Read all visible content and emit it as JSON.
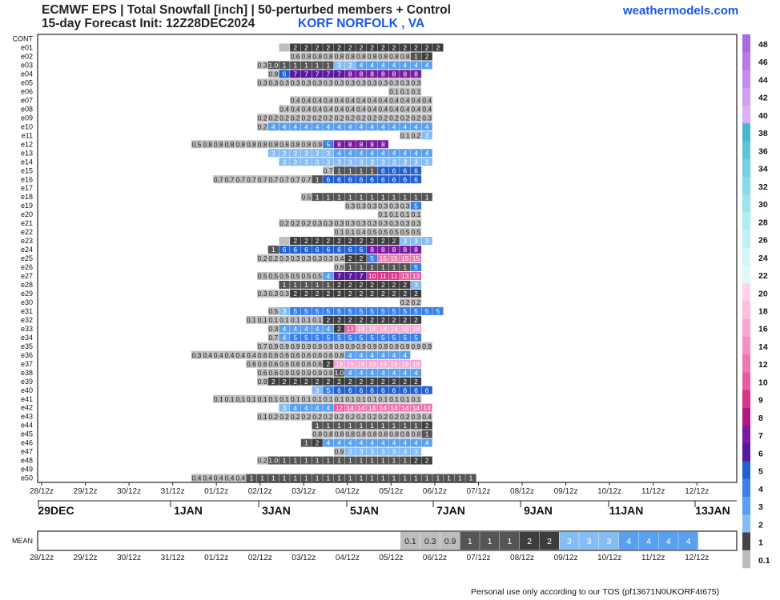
{
  "header": {
    "title": "ECMWF EPS | Total Snowfall [inch] | 50-perturbed members + Control",
    "subtitle": "15-day Forecast Init: 12Z28DEC2024",
    "location": "KORF NORFOLK        , VA",
    "brand": "weathermodels.com"
  },
  "footer": "Personal use only according to our TOS (pf13671N0UKORF4t675)",
  "chart_data": {
    "type": "heatmap",
    "unit": "inch",
    "members": [
      "CONT",
      "e01",
      "e02",
      "e03",
      "e04",
      "e05",
      "e06",
      "e07",
      "e08",
      "e09",
      "e10",
      "e11",
      "e12",
      "e13",
      "e14",
      "e15",
      "e16",
      "e17",
      "e18",
      "e19",
      "e20",
      "e21",
      "e22",
      "e23",
      "e24",
      "e25",
      "e26",
      "e27",
      "e28",
      "e29",
      "e30",
      "e31",
      "e32",
      "e33",
      "e34",
      "e35",
      "e36",
      "e37",
      "e38",
      "e39",
      "e40",
      "e41",
      "e42",
      "e43",
      "e44",
      "e45",
      "e46",
      "e47",
      "e48",
      "e49",
      "e50"
    ],
    "time_ticks": [
      "28/12z",
      "29/12z",
      "30/12z",
      "31/12z",
      "01/12z",
      "02/12z",
      "03/12z",
      "04/12z",
      "05/12z",
      "06/12z",
      "07/12z",
      "08/12z",
      "09/12z",
      "10/12z",
      "11/12z",
      "12/12z"
    ],
    "date_labels": [
      "29DEC",
      "1JAN",
      "3JAN",
      "5JAN",
      "7JAN",
      "9JAN",
      "11JAN",
      "13JAN"
    ],
    "colorbar": [
      "48",
      "46",
      "44",
      "42",
      "40",
      "38",
      "36",
      "34",
      "32",
      "30",
      "28",
      "26",
      "24",
      "22",
      "20",
      "18",
      "16",
      "14",
      "12",
      "10",
      "9",
      "8",
      "7",
      "6",
      "5",
      "4",
      "3",
      "2",
      "1",
      "0.1"
    ],
    "colorbar_colors": [
      "#a76ae0",
      "#b77ae8",
      "#c48cee",
      "#cf9ef2",
      "#d9b2f5",
      "#4ab7cf",
      "#5ec4d8",
      "#72d0e1",
      "#86dbe8",
      "#9be4ee",
      "#aeecf2",
      "#c0f1f5",
      "#d0f6f8",
      "#def9fb",
      "#ffd4ea",
      "#fbbede",
      "#f7a7d1",
      "#f38fc2",
      "#ee76b2",
      "#e65ca0",
      "#d9338a",
      "#b51883",
      "#7a1aa0",
      "#5a189a",
      "#2260d0",
      "#3a80e8",
      "#5aa0f0",
      "#86bcf4",
      "#444444",
      "#bdbdbd"
    ],
    "mean_label": "MEAN",
    "mean": [
      [
        "0.1",
        "0.3",
        "0.9",
        "1",
        "1",
        "1",
        "2",
        "2",
        "3",
        "3",
        "3",
        "4",
        "4",
        "4",
        "4"
      ]
    ],
    "rows": [
      {
        "m": "e01",
        "s": 22,
        "v": [
          "",
          "2",
          "2",
          "2",
          "2",
          "2",
          "2",
          "2",
          "2",
          "2",
          "2",
          "2",
          "2",
          "2",
          "2"
        ]
      },
      {
        "m": "e02",
        "s": 23,
        "v": [
          "0.6",
          "0.8",
          "0.8",
          "0.8",
          "0.8",
          "0.8",
          "0.8",
          "0.8",
          "0.8",
          "0.8",
          "0.8",
          "1",
          "2"
        ]
      },
      {
        "m": "e03",
        "s": 20,
        "v": [
          "0.3",
          "1.0",
          "1",
          "1",
          "1",
          "1",
          "1",
          "3",
          "3",
          "4",
          "4",
          "4",
          "4",
          "4",
          "4",
          "4"
        ]
      },
      {
        "m": "e04",
        "s": 21,
        "v": [
          "0.9",
          "6",
          "7",
          "7",
          "7",
          "7",
          "7",
          "8",
          "8",
          "8",
          "8",
          "8",
          "8",
          "8"
        ]
      },
      {
        "m": "e05",
        "s": 20,
        "v": [
          "0.3",
          "0.3",
          "0.3",
          "0.3",
          "0.3",
          "0.3",
          "0.3",
          "0.3",
          "0.3",
          "0.3",
          "0.3",
          "0.3",
          "0.3",
          "0.3",
          "0.3"
        ]
      },
      {
        "m": "e06",
        "s": 32,
        "v": [
          "0.1",
          "0.1",
          "0.1"
        ]
      },
      {
        "m": "e07",
        "s": 23,
        "v": [
          "0.4",
          "0.4",
          "0.4",
          "0.4",
          "0.4",
          "0.4",
          "0.4",
          "0.4",
          "0.4",
          "0.4",
          "0.4",
          "0.4",
          "0.4"
        ]
      },
      {
        "m": "e08",
        "s": 22,
        "v": [
          "0.4",
          "0.4",
          "0.4",
          "0.4",
          "0.4",
          "0.4",
          "0.4",
          "0.4",
          "0.4",
          "0.4",
          "0.4",
          "0.4",
          "0.4",
          "0.4"
        ]
      },
      {
        "m": "e09",
        "s": 20,
        "v": [
          "0.2",
          "0.2",
          "0.2",
          "0.2",
          "0.2",
          "0.2",
          "0.2",
          "0.2",
          "0.2",
          "0.2",
          "0.2",
          "0.2",
          "0.2",
          "0.2",
          "0.2",
          "0.3"
        ]
      },
      {
        "m": "e10",
        "s": 20,
        "v": [
          "0.2",
          "4",
          "4",
          "4",
          "4",
          "4",
          "4",
          "4",
          "4",
          "4",
          "4",
          "4",
          "4",
          "4",
          "4",
          "4"
        ]
      },
      {
        "m": "e11",
        "s": 33,
        "v": [
          "0.1",
          "0.2",
          "3"
        ]
      },
      {
        "m": "e12",
        "s": 14,
        "v": [
          "0.5",
          "0.8",
          "0.8",
          "0.8",
          "0.8",
          "0.8",
          "0.8",
          "0.8",
          "0.8",
          "0.8",
          "0.8",
          "0.9",
          "5",
          "8",
          "8",
          "8",
          "8",
          "8"
        ]
      },
      {
        "m": "e13",
        "s": 21,
        "v": [
          "3",
          "3",
          "3",
          "3",
          "3",
          "3",
          "4",
          "4",
          "4",
          "4",
          "4",
          "4",
          "4",
          "4",
          "4"
        ]
      },
      {
        "m": "e14",
        "s": 22,
        "v": [
          "3",
          "3",
          "3",
          "3",
          "3",
          "3",
          "3",
          "3",
          "3",
          "3",
          "3",
          "3",
          "3",
          "3"
        ]
      },
      {
        "m": "e15",
        "s": 26,
        "v": [
          "0.7",
          "1",
          "1",
          "1",
          "1",
          "6",
          "6",
          "6",
          "6"
        ]
      },
      {
        "m": "e16",
        "s": 16,
        "v": [
          "0.7",
          "0.7",
          "0.7",
          "0.7",
          "0.7",
          "0.7",
          "0.7",
          "0.7",
          "0.7",
          "1",
          "6",
          "6",
          "6",
          "6",
          "6",
          "6",
          "6",
          "6",
          "6"
        ]
      },
      {
        "m": "e18",
        "s": 24,
        "v": [
          "0.5",
          "1",
          "1",
          "1",
          "1",
          "1",
          "1",
          "1",
          "1",
          "1",
          "1",
          "1"
        ]
      },
      {
        "m": "e19",
        "s": 28,
        "v": [
          "0.3",
          "0.3",
          "0.3",
          "0.3",
          "0.3",
          "0.3",
          "5"
        ]
      },
      {
        "m": "e20",
        "s": 31,
        "v": [
          "0.1",
          "0.1",
          "0.1",
          "0.1"
        ]
      },
      {
        "m": "e21",
        "s": 22,
        "v": [
          "0.2",
          "0.2",
          "0.2",
          "0.3",
          "0.3",
          "0.3",
          "0.3",
          "0.3",
          "0.3",
          "0.3",
          "0.3",
          "0.3",
          "0.3"
        ]
      },
      {
        "m": "e22",
        "s": 27,
        "v": [
          "0.1",
          "0.1",
          "0.4",
          "0.5",
          "0.5",
          "0.5",
          "0.5",
          "0.5"
        ]
      },
      {
        "m": "e23",
        "s": 22,
        "v": [
          "",
          "2",
          "2",
          "2",
          "2",
          "2",
          "2",
          "2",
          "2",
          "2",
          "2",
          "3",
          "3",
          "3"
        ]
      },
      {
        "m": "e24",
        "s": 21,
        "v": [
          "1",
          "6",
          "6",
          "6",
          "6",
          "6",
          "6",
          "6",
          "6",
          "8",
          "8",
          "8",
          "8",
          "8"
        ]
      },
      {
        "m": "e25",
        "s": 20,
        "v": [
          "0.2",
          "0.2",
          "0.3",
          "0.3",
          "0.3",
          "0.3",
          "0.3",
          "0.4",
          "2",
          "2",
          "5",
          "15",
          "15",
          "15",
          "15"
        ]
      },
      {
        "m": "e26",
        "s": 27,
        "v": [
          "0.8",
          "1",
          "1",
          "1",
          "1",
          "1",
          "1",
          "5"
        ]
      },
      {
        "m": "e27",
        "s": 20,
        "v": [
          "0.5",
          "0.5",
          "0.5",
          "0.5",
          "0.5",
          "0.5",
          "4",
          "7",
          "7",
          "7",
          "10",
          "11",
          "11",
          "13",
          "13"
        ]
      },
      {
        "m": "e28",
        "s": 22,
        "v": [
          "1",
          "1",
          "1",
          "1",
          "1",
          "2",
          "2",
          "2",
          "2",
          "2",
          "2",
          "2",
          "3"
        ]
      },
      {
        "m": "e29",
        "s": 20,
        "v": [
          "0.3",
          "0.3",
          "0.3",
          "2",
          "2",
          "2",
          "2",
          "2",
          "2",
          "2",
          "2",
          "2",
          "2",
          "2",
          "2"
        ]
      },
      {
        "m": "e30",
        "s": 33,
        "v": [
          "0.2",
          "0.2"
        ]
      },
      {
        "m": "e31",
        "s": 21,
        "v": [
          "0.5",
          "3",
          "5",
          "5",
          "5",
          "5",
          "5",
          "5",
          "5",
          "5",
          "5",
          "5",
          "5",
          "5",
          "5",
          "5"
        ]
      },
      {
        "m": "e32",
        "s": 19,
        "v": [
          "0.1",
          "0.1",
          "0.1",
          "0.1",
          "0.1",
          "0.1",
          "0.1",
          "2",
          "2",
          "2",
          "2",
          "2",
          "2",
          "2",
          "2",
          "2"
        ]
      },
      {
        "m": "e33",
        "s": 21,
        "v": [
          "0.3",
          "4",
          "4",
          "4",
          "4",
          "4",
          "2",
          "13",
          "18",
          "18",
          "18",
          "18",
          "18",
          "18"
        ]
      },
      {
        "m": "e34",
        "s": 21,
        "v": [
          "0.7",
          "4",
          "5",
          "5",
          "5",
          "5",
          "5",
          "5",
          "5",
          "5",
          "5",
          "5",
          "5",
          "5"
        ]
      },
      {
        "m": "e35",
        "s": 20,
        "v": [
          "0.7",
          "0.9",
          "0.9",
          "0.9",
          "0.9",
          "0.9",
          "0.9",
          "0.9",
          "0.9",
          "0.9",
          "0.9",
          "0.9",
          "0.9",
          "0.9",
          "0.9",
          "0.9"
        ]
      },
      {
        "m": "e36",
        "s": 14,
        "v": [
          "0.3",
          "0.4",
          "0.4",
          "0.4",
          "0.4",
          "0.4",
          "0.6",
          "0.6",
          "0.6",
          "0.6",
          "0.6",
          "0.6",
          "0.6",
          "0.8",
          "4",
          "4",
          "4",
          "4",
          "4",
          "4"
        ]
      },
      {
        "m": "e37",
        "s": 19,
        "v": [
          "0.6",
          "0.6",
          "0.6",
          "0.6",
          "0.6",
          "0.6",
          "0.6",
          "2",
          "18",
          "19",
          "19",
          "19",
          "19",
          "19",
          "19",
          "19"
        ]
      },
      {
        "m": "e38",
        "s": 20,
        "v": [
          "0.6",
          "0.6",
          "0.9",
          "0.9",
          "0.9",
          "0.9",
          "0.9",
          "1.0",
          "4",
          "4",
          "4",
          "4",
          "4",
          "4",
          "4"
        ]
      },
      {
        "m": "e39",
        "s": 20,
        "v": [
          "0.9",
          "2",
          "2",
          "2",
          "2",
          "2",
          "2",
          "2",
          "2",
          "2",
          "2",
          "2",
          "2",
          "2",
          "2"
        ]
      },
      {
        "m": "e40",
        "s": 25,
        "v": [
          "3",
          "5",
          "6",
          "6",
          "6",
          "6",
          "6",
          "6",
          "6",
          "6",
          "6"
        ]
      },
      {
        "m": "e41",
        "s": 16,
        "v": [
          "0.1",
          "0.1",
          "0.1",
          "0.1",
          "0.1",
          "0.1",
          "0.1",
          "0.1",
          "0.1",
          "0.1",
          "0.1",
          "0.1",
          "0.1",
          "0.1",
          "0.1",
          "0.1",
          "0.1",
          "0.1",
          "0.1"
        ]
      },
      {
        "m": "e42",
        "s": 22,
        "v": [
          "3",
          "4",
          "4",
          "4",
          "4",
          "12",
          "14",
          "14",
          "14",
          "14",
          "14",
          "14",
          "14",
          "14"
        ]
      },
      {
        "m": "e43",
        "s": 20,
        "v": [
          "0.1",
          "0.2",
          "0.2",
          "0.2",
          "0.2",
          "0.2",
          "0.2",
          "0.2",
          "0.2",
          "0.2",
          "0.2",
          "0.2",
          "0.2",
          "0.2",
          "0.3",
          "0.4"
        ]
      },
      {
        "m": "e44",
        "s": 25,
        "v": [
          "1",
          "1",
          "1",
          "1",
          "1",
          "1",
          "1",
          "1",
          "1",
          "1",
          "2"
        ]
      },
      {
        "m": "e45",
        "s": 25,
        "v": [
          "0.8",
          "0.8",
          "0.8",
          "0.8",
          "0.8",
          "0.8",
          "0.8",
          "0.8",
          "0.8",
          "0.8",
          "1"
        ]
      },
      {
        "m": "e46",
        "s": 24,
        "v": [
          "1",
          "2",
          "4",
          "4",
          "4",
          "4",
          "4",
          "4",
          "4",
          "4",
          "4",
          "4"
        ]
      },
      {
        "m": "e47",
        "s": 27,
        "v": [
          "0.9",
          "3",
          "3",
          "3",
          "3",
          "3",
          "3",
          "3"
        ]
      },
      {
        "m": "e48",
        "s": 20,
        "v": [
          "0.2",
          "1.0",
          "1",
          "1",
          "1",
          "1",
          "1",
          "1",
          "1",
          "1",
          "1",
          "1",
          "1",
          "1",
          "2",
          "2"
        ]
      },
      {
        "m": "e50",
        "s": 14,
        "v": [
          "0.4",
          "0.4",
          "0.4",
          "0.4",
          "0.4",
          "1",
          "1",
          "1",
          "1",
          "1",
          "1",
          "1",
          "1",
          "1",
          "1",
          "1",
          "1",
          "1",
          "1",
          "1",
          "1",
          "1",
          "1",
          "1",
          "1",
          "1"
        ]
      }
    ]
  }
}
